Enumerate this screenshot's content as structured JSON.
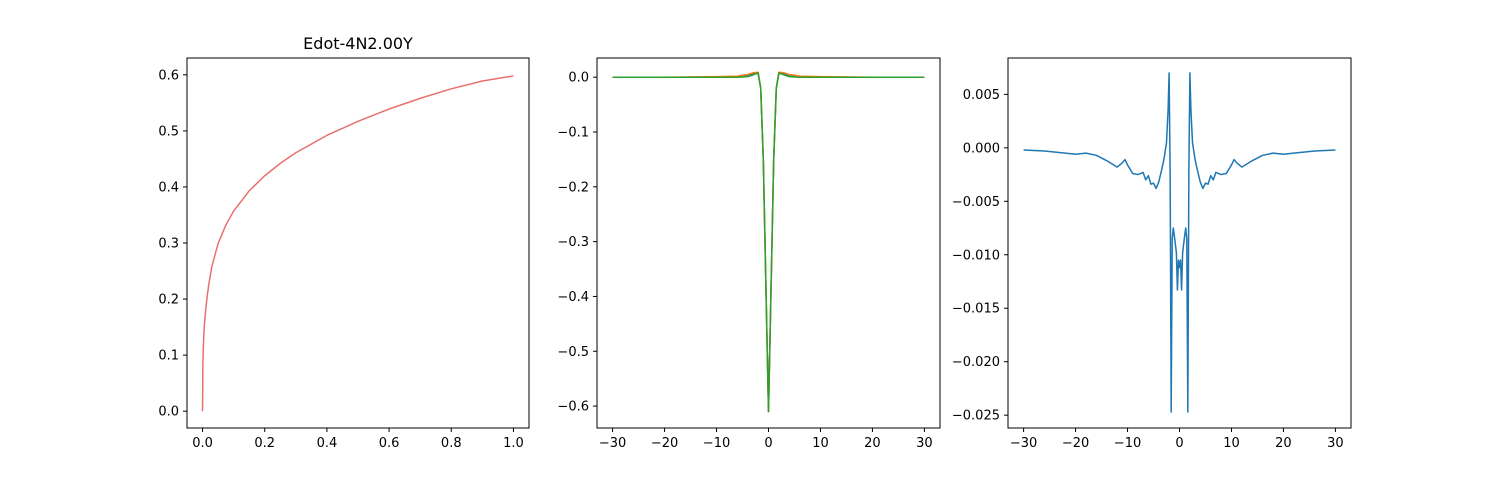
{
  "figure": {
    "background": "#ffffff"
  },
  "chart_data": [
    {
      "type": "line",
      "title": "Edot-4N2.00Y",
      "xlabel": "",
      "ylabel": "",
      "xlim": [
        -0.05,
        1.05
      ],
      "ylim": [
        -0.03,
        0.63
      ],
      "xticks": [
        0.0,
        0.2,
        0.4,
        0.6,
        0.8,
        1.0
      ],
      "xtick_labels": [
        "0.0",
        "0.2",
        "0.4",
        "0.6",
        "0.8",
        "1.0"
      ],
      "yticks": [
        0.0,
        0.1,
        0.2,
        0.3,
        0.4,
        0.5,
        0.6
      ],
      "ytick_labels": [
        "0.0",
        "0.1",
        "0.2",
        "0.3",
        "0.4",
        "0.5",
        "0.6"
      ],
      "grid": false,
      "series": [
        {
          "color": "#e8706e",
          "x": [
            0.0,
            0.001,
            0.002,
            0.004,
            0.006,
            0.01,
            0.015,
            0.02,
            0.03,
            0.05,
            0.075,
            0.1,
            0.15,
            0.2,
            0.25,
            0.3,
            0.4,
            0.5,
            0.6,
            0.7,
            0.8,
            0.9,
            1.0
          ],
          "y": [
            0.0,
            0.085,
            0.107,
            0.134,
            0.154,
            0.18,
            0.205,
            0.226,
            0.258,
            0.299,
            0.332,
            0.357,
            0.393,
            0.42,
            0.442,
            0.461,
            0.492,
            0.517,
            0.539,
            0.558,
            0.575,
            0.589,
            0.598
          ]
        }
      ]
    },
    {
      "type": "line",
      "title": "",
      "xlabel": "",
      "ylabel": "",
      "xlim": [
        -33,
        33
      ],
      "ylim": [
        -0.64,
        0.035
      ],
      "xticks": [
        -30,
        -20,
        -10,
        0,
        10,
        20,
        30
      ],
      "xtick_labels": [
        "−30",
        "−20",
        "−10",
        "0",
        "10",
        "20",
        "30"
      ],
      "yticks": [
        0.0,
        -0.1,
        -0.2,
        -0.3,
        -0.4,
        -0.5,
        -0.6
      ],
      "ytick_labels": [
        "0.0",
        "−0.1",
        "−0.2",
        "−0.3",
        "−0.4",
        "−0.5",
        "−0.6"
      ],
      "grid": false,
      "series": [
        {
          "color": "#1f77b4",
          "x": [
            -30,
            -20,
            -10,
            -6,
            -4,
            -3,
            -2,
            -1.5,
            -1,
            -0.5,
            0,
            0.5,
            1,
            1.5,
            2,
            3,
            4,
            6,
            10,
            20,
            30
          ],
          "y": [
            0.0,
            0.0,
            0.0,
            0.001,
            0.004,
            0.006,
            0.007,
            -0.02,
            -0.15,
            -0.38,
            -0.61,
            -0.38,
            -0.15,
            -0.02,
            0.007,
            0.006,
            0.004,
            0.001,
            0.0,
            0.0,
            0.0
          ]
        },
        {
          "color": "#ff7f0e",
          "x": [
            -30,
            -20,
            -10,
            -6,
            -4,
            -3,
            -2,
            -1.5,
            -1,
            -0.5,
            0,
            0.5,
            1,
            1.5,
            2,
            3,
            4,
            6,
            10,
            20,
            30
          ],
          "y": [
            0.0,
            0.0,
            0.001,
            0.002,
            0.005,
            0.008,
            0.009,
            -0.02,
            -0.15,
            -0.38,
            -0.61,
            -0.38,
            -0.15,
            -0.02,
            0.009,
            0.008,
            0.005,
            0.002,
            0.001,
            0.0,
            0.0
          ]
        },
        {
          "color": "#2ca02c",
          "x": [
            -30,
            -20,
            -10,
            -6,
            -4,
            -3,
            -2,
            -1.5,
            -1,
            -0.5,
            0,
            0.5,
            1,
            1.5,
            2,
            3,
            4,
            6,
            10,
            20,
            30
          ],
          "y": [
            0.0,
            0.0,
            0.0,
            0.0,
            0.001,
            0.004,
            0.008,
            -0.02,
            -0.15,
            -0.38,
            -0.61,
            -0.38,
            -0.15,
            -0.02,
            0.008,
            0.004,
            0.001,
            0.0,
            0.0,
            0.0,
            0.0
          ]
        }
      ]
    },
    {
      "type": "line",
      "title": "",
      "xlabel": "",
      "ylabel": "",
      "xlim": [
        -33,
        33
      ],
      "ylim": [
        -0.0262,
        0.0084
      ],
      "xticks": [
        -30,
        -20,
        -10,
        0,
        10,
        20,
        30
      ],
      "xtick_labels": [
        "−30",
        "−20",
        "−10",
        "0",
        "10",
        "20",
        "30"
      ],
      "yticks": [
        0.005,
        0.0,
        -0.005,
        -0.01,
        -0.015,
        -0.02,
        -0.025
      ],
      "ytick_labels": [
        "0.005",
        "0.000",
        "−0.005",
        "−0.010",
        "−0.015",
        "−0.020",
        "−0.025"
      ],
      "grid": false,
      "series": [
        {
          "color": "#1f77b4",
          "x": [
            -30,
            -26,
            -22,
            -20,
            -18,
            -16,
            -14,
            -12,
            -11,
            -10.5,
            -10,
            -9,
            -8,
            -7,
            -6.5,
            -6,
            -5.5,
            -5,
            -4.5,
            -4,
            -3.5,
            -3,
            -2.5,
            -2.2,
            -2,
            -1.8,
            -1.6,
            -1.4,
            -1.2,
            -1,
            -0.8,
            -0.6,
            -0.4,
            -0.2,
            0,
            0.2,
            0.4,
            0.6,
            0.8,
            1,
            1.2,
            1.4,
            1.6,
            1.8,
            2,
            2.2,
            2.5,
            3,
            3.5,
            4,
            4.5,
            5,
            5.5,
            6,
            6.5,
            7,
            8,
            9,
            10,
            10.5,
            11,
            12,
            14,
            16,
            18,
            20,
            22,
            26,
            30
          ],
          "y": [
            -0.0002,
            -0.0003,
            -0.0005,
            -0.0006,
            -0.0005,
            -0.0007,
            -0.0012,
            -0.0018,
            -0.0014,
            -0.0011,
            -0.0016,
            -0.0024,
            -0.0025,
            -0.0023,
            -0.003,
            -0.0026,
            -0.0034,
            -0.0033,
            -0.0038,
            -0.0032,
            -0.0022,
            -0.0011,
            0.0005,
            0.0035,
            0.007,
            -0.0025,
            -0.0247,
            -0.0085,
            -0.0075,
            -0.0082,
            -0.009,
            -0.0098,
            -0.0133,
            -0.0105,
            -0.0112,
            -0.0105,
            -0.0133,
            -0.0098,
            -0.009,
            -0.0082,
            -0.0075,
            -0.0085,
            -0.0247,
            -0.0025,
            0.007,
            0.0035,
            0.0005,
            -0.0011,
            -0.0022,
            -0.0032,
            -0.0038,
            -0.0033,
            -0.0034,
            -0.0026,
            -0.003,
            -0.0023,
            -0.0025,
            -0.0024,
            -0.0016,
            -0.0011,
            -0.0014,
            -0.0018,
            -0.0012,
            -0.0007,
            -0.0005,
            -0.0006,
            -0.0005,
            -0.0003,
            -0.0002
          ]
        }
      ]
    }
  ]
}
